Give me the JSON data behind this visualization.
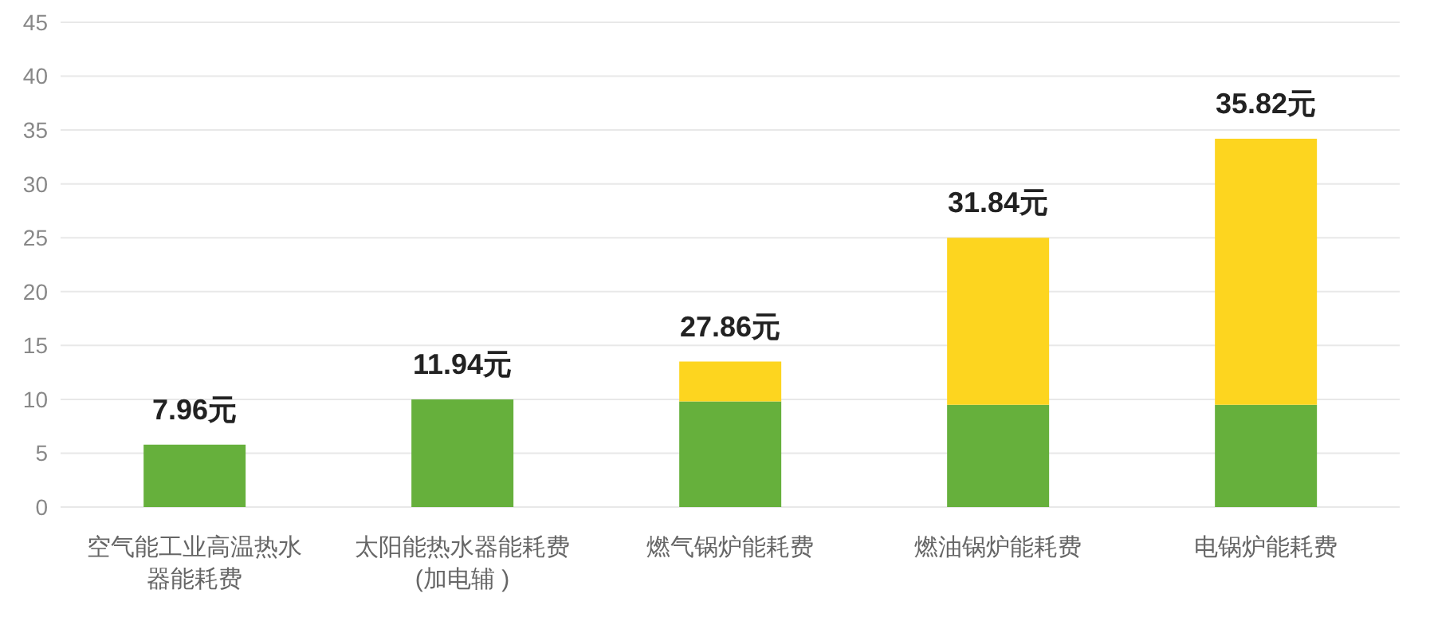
{
  "chart_data": {
    "type": "bar",
    "stacked": true,
    "categories": [
      "空气能工业高温热水器能耗费",
      "太阳能热水器能耗费(加电辅 )",
      "燃气锅炉能耗费",
      "燃油锅炉能耗费",
      "电锅炉能耗费"
    ],
    "series": [
      {
        "color": "#66b03c",
        "values": [
          5.8,
          10.0,
          9.8,
          9.5,
          9.5
        ]
      },
      {
        "color": "#fdd51f",
        "values": [
          null,
          null,
          3.7,
          15.5,
          24.7
        ]
      }
    ],
    "annotations": [
      {
        "text": "7.96元",
        "x": "空气能工业高温热水器能耗费",
        "y": 5.8
      },
      {
        "text": "11.94元",
        "x": "太阳能热水器能耗费(加电辅 )",
        "y": 10.0
      },
      {
        "text": "27.86元",
        "x": "燃气锅炉能耗费",
        "y": 13.5
      },
      {
        "text": "31.84元",
        "x": "燃油锅炉能耗费",
        "y": 25.0
      },
      {
        "text": "35.82元",
        "x": "电锅炉能耗费",
        "y": 34.2
      }
    ],
    "ylim": [
      0,
      45
    ],
    "yticks": [
      0,
      5,
      10,
      15,
      20,
      25,
      30,
      35,
      40,
      45
    ],
    "grid": "y",
    "legend": false
  }
}
